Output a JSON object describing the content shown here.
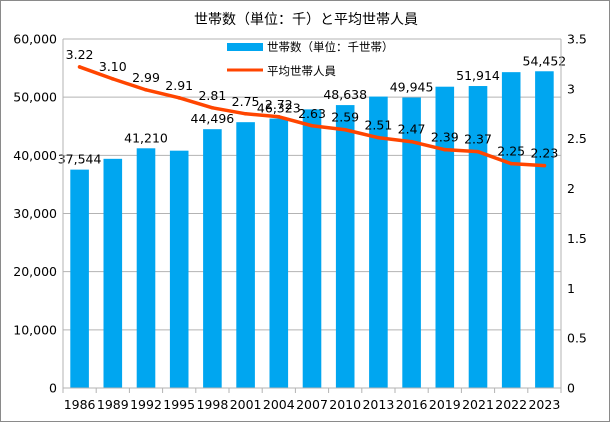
{
  "colors": {
    "bar": "#00A6F0",
    "line": "#FF4500",
    "grid": "#b3b3b3",
    "axis": "#b3b3b3"
  },
  "chart_data": {
    "type": "bar",
    "title": "世帯数（単位：千）と平均世帯人員",
    "categories": [
      "1986",
      "1989",
      "1992",
      "1995",
      "1998",
      "2001",
      "2004",
      "2007",
      "2010",
      "2013",
      "2016",
      "2019",
      "2021",
      "2022",
      "2023"
    ],
    "series": [
      {
        "name": "世帯数（単位：千世帯）",
        "type": "bar",
        "axis": "left",
        "values": [
          37544,
          39400,
          41210,
          40800,
          44496,
          45700,
          46323,
          47900,
          48638,
          50100,
          49945,
          51800,
          51914,
          54300,
          54452
        ],
        "labels": [
          "37,544",
          "",
          "41,210",
          "",
          "44,496",
          "",
          "46,323",
          "",
          "48,638",
          "",
          "49,945",
          "",
          "51,914",
          "",
          "54,452"
        ]
      },
      {
        "name": "平均世帯人員",
        "type": "line",
        "axis": "right",
        "values": [
          3.22,
          3.1,
          2.99,
          2.91,
          2.81,
          2.75,
          2.72,
          2.63,
          2.59,
          2.51,
          2.47,
          2.39,
          2.37,
          2.25,
          2.23
        ],
        "labels": [
          "3.22",
          "3.10",
          "2.99",
          "2.91",
          "2.81",
          "2.75",
          "2.72",
          "2.63",
          "2.59",
          "2.51",
          "2.47",
          "2.39",
          "2.37",
          "2.25",
          "2.23"
        ]
      }
    ],
    "ylim_left": [
      0,
      60000
    ],
    "yticks_left": [
      "0",
      "10,000",
      "20,000",
      "30,000",
      "40,000",
      "50,000",
      "60,000"
    ],
    "ylim_right": [
      0,
      3.5
    ],
    "yticks_right": [
      "0",
      "0.5",
      "1",
      "1.5",
      "2",
      "2.5",
      "3",
      "3.5"
    ],
    "grid": true,
    "legend": "top-center"
  }
}
